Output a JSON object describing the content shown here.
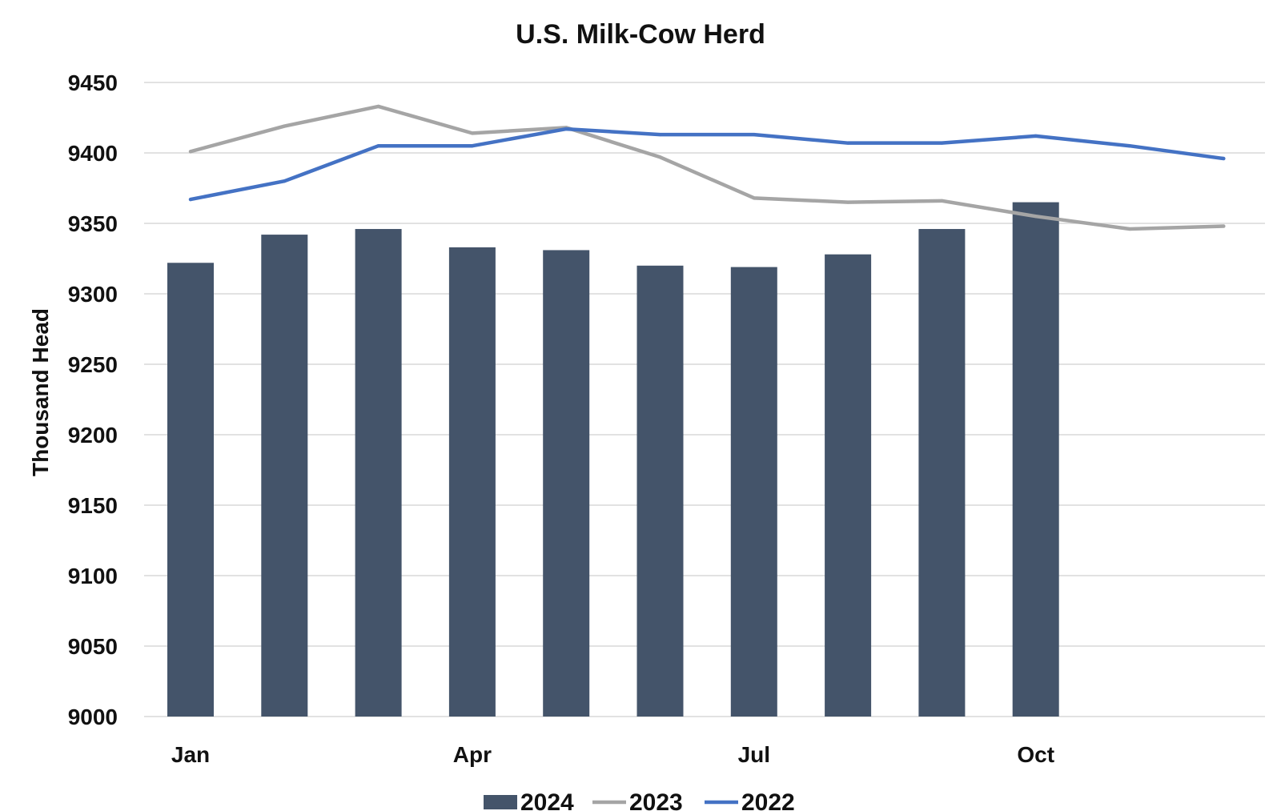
{
  "chart_data": {
    "type": "bar",
    "title": "U.S. Milk-Cow Herd",
    "xlabel": "",
    "ylabel": "Thousand Head",
    "ylim": [
      9000,
      9450
    ],
    "yticks": [
      9000,
      9050,
      9100,
      9150,
      9200,
      9250,
      9300,
      9350,
      9400,
      9450
    ],
    "ytick_labels": [
      "9000",
      "9050",
      "9100",
      "9150",
      "9200",
      "9250",
      "9300",
      "9350",
      "9400",
      "9450"
    ],
    "categories": [
      "Jan",
      "Feb",
      "Mar",
      "Apr",
      "May",
      "Jun",
      "Jul",
      "Aug",
      "Sep",
      "Oct",
      "Nov",
      "Dec"
    ],
    "xtick_labels": [
      {
        "index": 0,
        "label": "Jan"
      },
      {
        "index": 3,
        "label": "Apr"
      },
      {
        "index": 6,
        "label": "Jul"
      },
      {
        "index": 9,
        "label": "Oct"
      }
    ],
    "grid": true,
    "legend_position": "bottom",
    "series": [
      {
        "name": "2024",
        "kind": "bar",
        "color": "#44546a",
        "values": [
          9322,
          9342,
          9346,
          9333,
          9331,
          9320,
          9319,
          9328,
          9346,
          9365,
          null,
          null
        ]
      },
      {
        "name": "2023",
        "kind": "line",
        "color": "#a5a5a5",
        "values": [
          9401,
          9419,
          9433,
          9414,
          9418,
          9397,
          9368,
          9365,
          9366,
          9355,
          9346,
          9348
        ]
      },
      {
        "name": "2022",
        "kind": "line",
        "color": "#4472c4",
        "values": [
          9367,
          9380,
          9405,
          9405,
          9417,
          9413,
          9413,
          9407,
          9407,
          9412,
          9405,
          9396
        ]
      }
    ]
  }
}
